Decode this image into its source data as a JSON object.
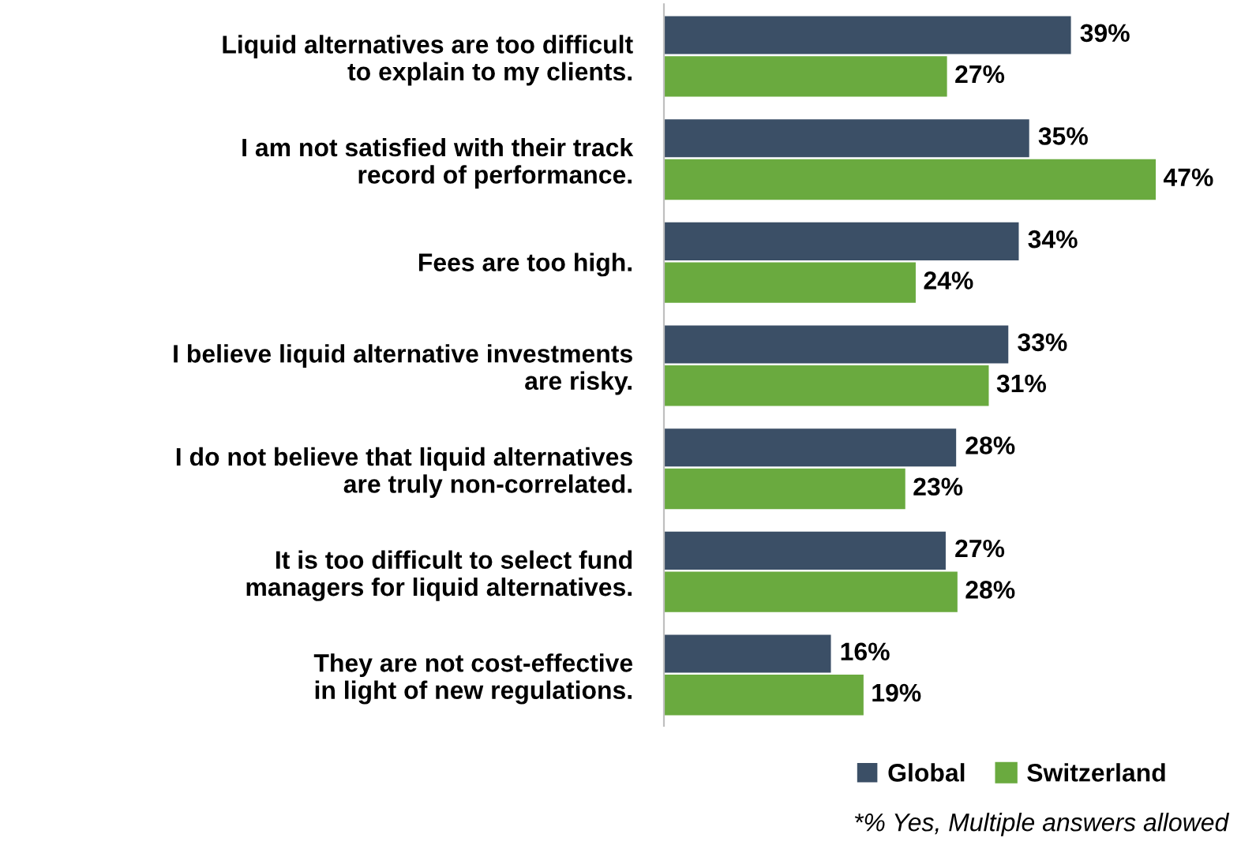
{
  "chart_data": {
    "type": "bar",
    "orientation": "horizontal",
    "categories": [
      "Liquid alternatives are too difficult\nto explain to my clients.",
      "I am not satisfied with their track\nrecord of performance.",
      "Fees are too high.",
      "I believe liquid alternative investments\nare risky.",
      "I do not believe that liquid alternatives\nare truly non-correlated.",
      "It is too difficult to select fund\nmanagers for liquid alternatives.",
      "They are not cost-effective\nin light of new regulations."
    ],
    "series": [
      {
        "name": "Global",
        "color": "#3b4f66",
        "values": [
          39,
          35,
          34,
          33,
          28,
          27,
          16
        ],
        "value_labels": [
          "39%",
          "35%",
          "34%",
          "33%",
          "28%",
          "27%",
          "16%"
        ]
      },
      {
        "name": "Switzerland",
        "color": "#6aaa3f",
        "values": [
          27,
          47,
          24,
          31,
          23,
          28,
          19
        ],
        "value_labels": [
          "27%",
          "47%",
          "24%",
          "31%",
          "23%",
          "28%",
          "19%"
        ]
      }
    ],
    "legend": "bottom right",
    "grid": false,
    "annotations": [
      "*% Yes, Multiple answers allowed"
    ]
  }
}
